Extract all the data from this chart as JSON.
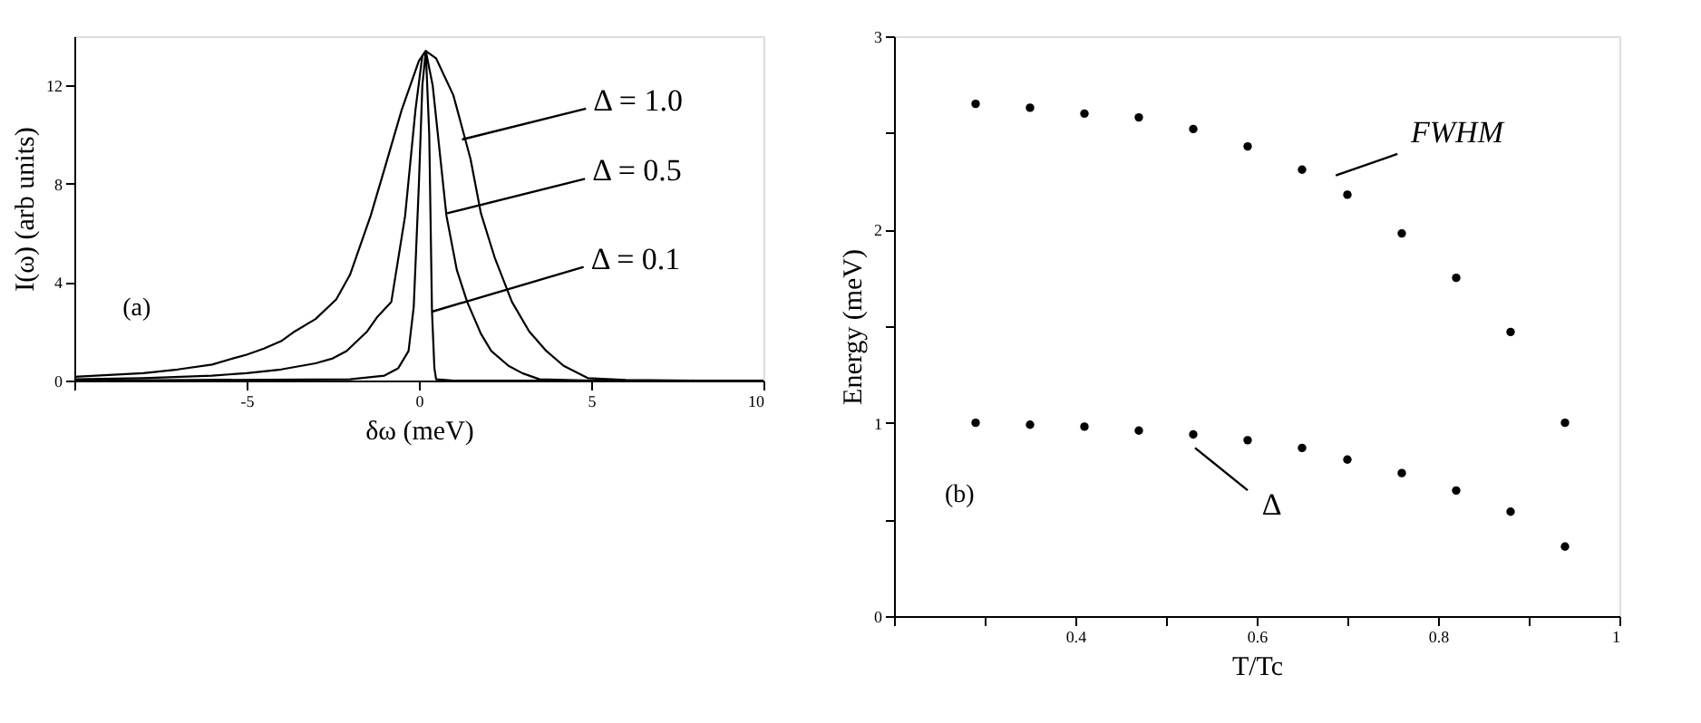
{
  "chart_data": [
    {
      "type": "line",
      "xlabel": "δω (meV)",
      "ylabel": "I(ω) (arb units)",
      "xlim": [
        -10,
        10
      ],
      "ylim": [
        0,
        14
      ],
      "xticks": [
        {
          "value": -10,
          "label": null
        },
        -5,
        0,
        5,
        10
      ],
      "yticks": [
        0,
        4,
        8,
        12
      ],
      "grid": false,
      "marker": "none",
      "line_style": "solid",
      "series": [
        {
          "color": "#000000",
          "x": [
            -10,
            -8,
            -7,
            -6,
            -5.4,
            -5,
            -4.5,
            -4,
            -3.6,
            -3,
            -2.4,
            -2,
            -1.4,
            -1,
            -0.5,
            0,
            0.2,
            0.5,
            1,
            1.5,
            1.8,
            2.2,
            2.7,
            3.2,
            3.7,
            4.2,
            4.9,
            6,
            8,
            10
          ],
          "values": [
            0.15,
            0.3,
            0.45,
            0.65,
            0.9,
            1.05,
            1.3,
            1.6,
            2.0,
            2.5,
            3.3,
            4.3,
            6.7,
            8.6,
            11.0,
            13.0,
            13.4,
            13.1,
            11.6,
            9.0,
            6.8,
            5.0,
            3.2,
            2.0,
            1.2,
            0.6,
            0.1,
            0.02,
            0,
            0
          ]
        },
        {
          "color": "#000000",
          "x": [
            -10,
            -8,
            -6,
            -5,
            -4,
            -3,
            -2.5,
            -2.1,
            -1.5,
            -1.2,
            -0.8,
            -0.4,
            -0.1,
            0.1,
            0.2,
            0.4,
            0.8,
            1.1,
            1.4,
            1.8,
            2.1,
            2.6,
            3.0,
            3.5,
            5,
            10
          ],
          "values": [
            0.05,
            0.1,
            0.2,
            0.3,
            0.45,
            0.7,
            0.9,
            1.2,
            2.0,
            2.6,
            3.2,
            6.7,
            11.0,
            13.2,
            13.4,
            12.0,
            6.7,
            4.5,
            3.2,
            1.9,
            1.2,
            0.6,
            0.3,
            0.05,
            0,
            0
          ]
        },
        {
          "color": "#000000",
          "x": [
            -10,
            -2,
            -1,
            -0.6,
            -0.3,
            -0.15,
            0,
            0.1,
            0.2,
            0.3,
            0.38,
            0.45,
            0.5,
            1,
            10
          ],
          "values": [
            0,
            0.05,
            0.2,
            0.5,
            1.2,
            3.0,
            8.0,
            12.0,
            13.4,
            10.0,
            2.8,
            0.5,
            0.05,
            0,
            0
          ]
        }
      ],
      "annotations": [
        {
          "text": "Δ = 1.0",
          "x": 1.25,
          "y": 9.8
        },
        {
          "text": "Δ = 0.5",
          "x": 0.82,
          "y": 6.8
        },
        {
          "text": "Δ = 0.1",
          "x": 0.38,
          "y": 2.8
        },
        "(a)"
      ]
    },
    {
      "type": "scatter",
      "xlabel": "T/Tc",
      "ylabel": "Energy (meV)",
      "xlim": [
        0.2,
        1
      ],
      "ylim": [
        0,
        3
      ],
      "xticks": [
        {
          "value": 0.2,
          "label": null
        },
        {
          "value": 0.3,
          "label": null
        },
        0.4,
        {
          "value": 0.5,
          "label": null
        },
        0.6,
        {
          "value": 0.7,
          "label": null
        },
        0.8,
        {
          "value": 0.9,
          "label": null
        },
        1
      ],
      "yticks": [
        0,
        {
          "value": 0.5,
          "label": null
        },
        1,
        {
          "value": 1.5,
          "label": null
        },
        2,
        {
          "value": 2.5,
          "label": null
        },
        3
      ],
      "grid": false,
      "marker": "circle",
      "x": [
        0.29,
        0.35,
        0.41,
        0.47,
        0.53,
        0.59,
        0.65,
        0.7,
        0.76,
        0.82,
        0.88,
        0.94
      ],
      "series": [
        {
          "color": "#000000",
          "values": [
            2.65,
            2.63,
            2.6,
            2.58,
            2.52,
            2.43,
            2.31,
            2.18,
            1.98,
            1.75,
            1.47,
            1.0
          ]
        },
        {
          "color": "#000000",
          "values": [
            1.0,
            0.99,
            0.98,
            0.96,
            0.94,
            0.91,
            0.87,
            0.81,
            0.74,
            0.65,
            0.54,
            0.36
          ]
        }
      ],
      "annotations": [
        "FWHM",
        "Δ",
        "(b)"
      ]
    }
  ]
}
